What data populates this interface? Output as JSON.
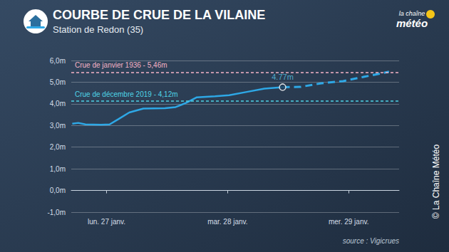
{
  "chart_data": {
    "type": "line",
    "title": "COURBE DE CRUE DE LA VILAINE",
    "subtitle": "Station de Redon (35)",
    "logo": [
      "la chaîne",
      "météo"
    ],
    "credit": "© La Chaîne Météo",
    "source": "source : Vigicrues",
    "x": [
      -6.8,
      -5.6,
      -4.2,
      -1.1,
      0.6,
      2.4,
      4.5,
      7.3,
      11.6,
      13.7,
      15.8,
      17.9,
      21.5,
      24.3,
      27.8,
      31.3,
      34.9,
      38.4,
      42.6,
      46.9,
      51.1,
      56.0
    ],
    "series": [
      {
        "color": "#2ea8e6",
        "line_style": "solid",
        "values": [
          3.08,
          3.12,
          3.05,
          3.03,
          3.05,
          3.3,
          3.6,
          3.78,
          3.8,
          3.85,
          4.05,
          4.3,
          4.35,
          4.4,
          4.55,
          4.7,
          4.77,
          null,
          null,
          null,
          null,
          null
        ]
      },
      {
        "color": "#2ea8e6",
        "line_style": "dashed",
        "values": [
          null,
          null,
          null,
          null,
          null,
          null,
          null,
          null,
          null,
          null,
          null,
          null,
          null,
          null,
          null,
          null,
          4.77,
          4.78,
          4.95,
          5.05,
          5.25,
          5.48
        ]
      }
    ],
    "xlim": [
      -7,
      58
    ],
    "xticks": [
      {
        "value": 0,
        "label": "lun. 27 janv."
      },
      {
        "value": 24,
        "label": "mar. 28 janv."
      },
      {
        "value": 48,
        "label": "mer. 29 janv."
      }
    ],
    "ylim": [
      -1,
      6
    ],
    "yticks": [
      {
        "value": -1,
        "label": "-1,0m"
      },
      {
        "value": 0,
        "label": "0,0m"
      },
      {
        "value": 1,
        "label": "1,0m"
      },
      {
        "value": 2,
        "label": "2,0m"
      },
      {
        "value": 3,
        "label": "3,0m"
      },
      {
        "value": 4,
        "label": "4,0m"
      },
      {
        "value": 5,
        "label": "5,0m"
      },
      {
        "value": 6,
        "label": "6,0m"
      }
    ],
    "grid": true,
    "annotations": [
      {
        "text": "Crue de janvier 1936 - 5,46m",
        "y": 5.46,
        "color": "#f5b3c6",
        "line_style": "dashed"
      },
      {
        "text": "Crue de décembre 2019 - 4,12m",
        "y": 4.12,
        "color": "#4fd4e6",
        "line_style": "dashed"
      },
      {
        "text": "4.77m",
        "x": 34.9,
        "y": 4.77,
        "color": "#58c6e8",
        "marker": "circle"
      }
    ]
  }
}
